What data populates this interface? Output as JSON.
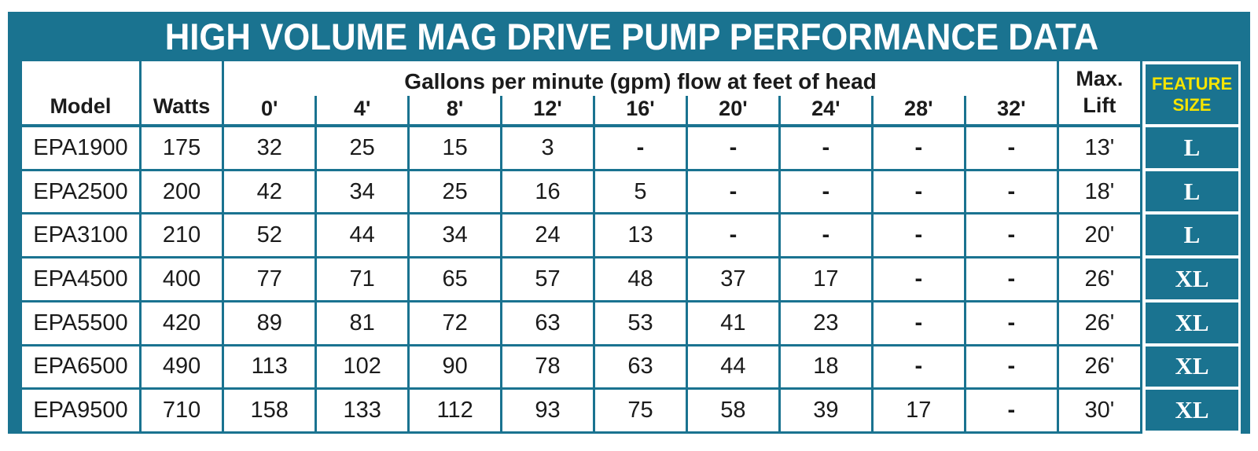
{
  "title": "HIGH VOLUME MAG DRIVE PUMP PERFORMANCE DATA",
  "chart_data": {
    "type": "table",
    "title": "HIGH VOLUME MAG DRIVE PUMP PERFORMANCE DATA",
    "column_group_label": "Gallons per minute (gpm) flow at feet of head",
    "columns": [
      "Model",
      "Watts",
      "0'",
      "4'",
      "8'",
      "12'",
      "16'",
      "20'",
      "24'",
      "28'",
      "32'",
      "Max. Lift",
      "FEATURE SIZE"
    ],
    "rows": [
      [
        "EPA1900",
        "175",
        "32",
        "25",
        "15",
        "3",
        "-",
        "-",
        "-",
        "-",
        "-",
        "13'",
        "L"
      ],
      [
        "EPA2500",
        "200",
        "42",
        "34",
        "25",
        "16",
        "5",
        "-",
        "-",
        "-",
        "-",
        "18'",
        "L"
      ],
      [
        "EPA3100",
        "210",
        "52",
        "44",
        "34",
        "24",
        "13",
        "-",
        "-",
        "-",
        "-",
        "20'",
        "L"
      ],
      [
        "EPA4500",
        "400",
        "77",
        "71",
        "65",
        "57",
        "48",
        "37",
        "17",
        "-",
        "-",
        "26'",
        "XL"
      ],
      [
        "EPA5500",
        "420",
        "89",
        "81",
        "72",
        "63",
        "53",
        "41",
        "23",
        "-",
        "-",
        "26'",
        "XL"
      ],
      [
        "EPA6500",
        "490",
        "113",
        "102",
        "90",
        "78",
        "63",
        "44",
        "18",
        "-",
        "-",
        "26'",
        "XL"
      ],
      [
        "EPA9500",
        "710",
        "158",
        "133",
        "112",
        "93",
        "75",
        "58",
        "39",
        "17",
        "-",
        "30'",
        "XL"
      ]
    ]
  },
  "colors": {
    "teal": "#1a7390",
    "yellow": "#f5e400",
    "cell_bg": "#ffffff",
    "text": "#1b1b1b",
    "title_text": "#ffffff"
  }
}
